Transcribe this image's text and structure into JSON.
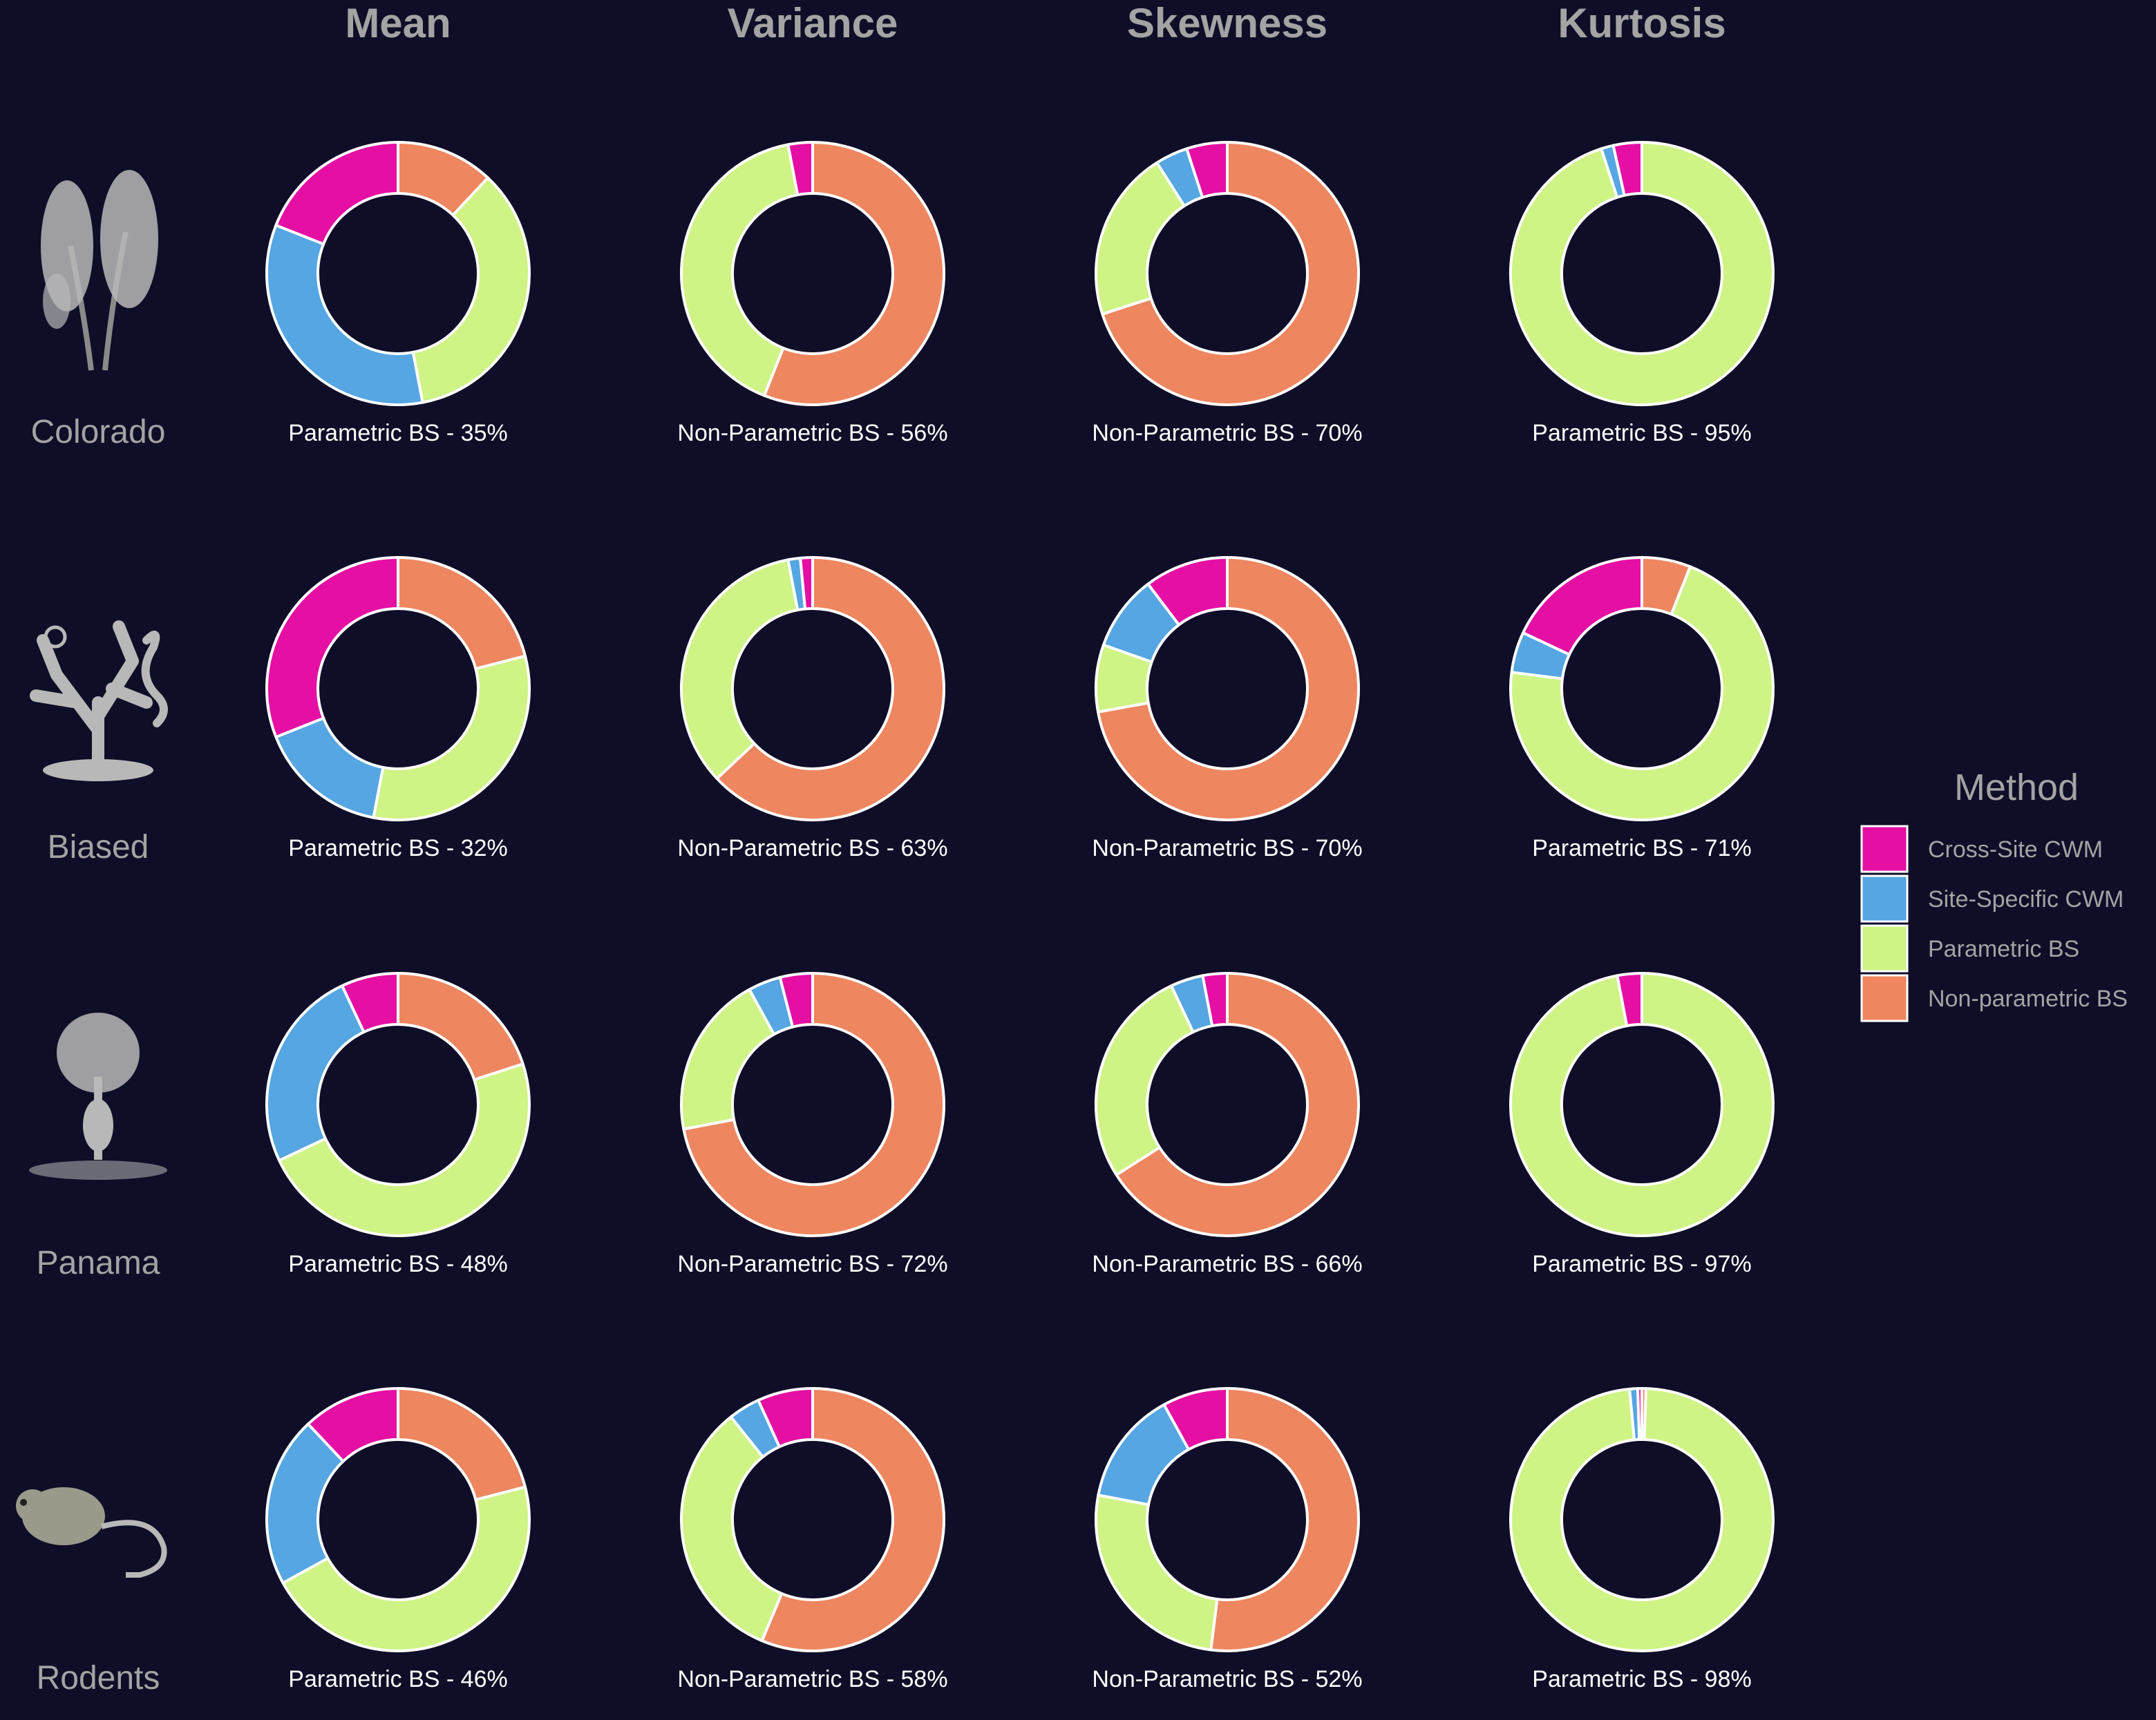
{
  "colors": {
    "background": "#0e0e28",
    "text": "#a3a3a3",
    "caption": "#ffffff",
    "slice_border": "#ffffff"
  },
  "chart_data": {
    "type": "pie",
    "variant": "donut-grid",
    "columns": [
      "Mean",
      "Variance",
      "Skewness",
      "Kurtosis"
    ],
    "rows": [
      "Colorado",
      "Biased",
      "Panama",
      "Rodents"
    ],
    "row_icons": [
      "plant-sprig-icon",
      "coral-seahorse-icon",
      "tree-icon",
      "rodent-icon"
    ],
    "legend": {
      "title": "Method",
      "position": "right",
      "entries": [
        {
          "label": "Cross-Site CWM",
          "color": "#e50fa3"
        },
        {
          "label": "Site-Specific CWM",
          "color": "#55a6e2"
        },
        {
          "label": "Parametric BS",
          "color": "#cff385"
        },
        {
          "label": "Non-parametric BS",
          "color": "#ee8660"
        }
      ]
    },
    "slice_order": [
      "Non-parametric BS",
      "Parametric BS",
      "Site-Specific CWM",
      "Cross-Site CWM"
    ],
    "panels": [
      {
        "row": "Colorado",
        "column": "Mean",
        "caption": "Parametric BS - 35%",
        "values": {
          "Non-parametric BS": 12,
          "Parametric BS": 35,
          "Site-Specific CWM": 34,
          "Cross-Site CWM": 19
        }
      },
      {
        "row": "Colorado",
        "column": "Variance",
        "caption": "Non-Parametric BS - 56%",
        "values": {
          "Non-parametric BS": 56,
          "Parametric BS": 41,
          "Site-Specific CWM": 0,
          "Cross-Site CWM": 3
        }
      },
      {
        "row": "Colorado",
        "column": "Skewness",
        "caption": "Non-Parametric BS - 70%",
        "values": {
          "Non-parametric BS": 70,
          "Parametric BS": 21,
          "Site-Specific CWM": 4,
          "Cross-Site CWM": 5
        }
      },
      {
        "row": "Colorado",
        "column": "Kurtosis",
        "caption": "Parametric BS - 95%",
        "values": {
          "Non-parametric BS": 0,
          "Parametric BS": 95,
          "Site-Specific CWM": 1.5,
          "Cross-Site CWM": 3.5
        }
      },
      {
        "row": "Biased",
        "column": "Mean",
        "caption": "Parametric BS - 32%",
        "values": {
          "Non-parametric BS": 21,
          "Parametric BS": 32,
          "Site-Specific CWM": 16,
          "Cross-Site CWM": 31
        }
      },
      {
        "row": "Biased",
        "column": "Variance",
        "caption": "Non-Parametric BS - 63%",
        "values": {
          "Non-parametric BS": 63,
          "Parametric BS": 34,
          "Site-Specific CWM": 1.5,
          "Cross-Site CWM": 1.5
        }
      },
      {
        "row": "Biased",
        "column": "Skewness",
        "caption": "Non-Parametric BS - 70%",
        "values": {
          "Non-parametric BS": 70,
          "Parametric BS": 8,
          "Site-Specific CWM": 9,
          "Cross-Site CWM": 10
        }
      },
      {
        "row": "Biased",
        "column": "Kurtosis",
        "caption": "Parametric BS - 71%",
        "values": {
          "Non-parametric BS": 6,
          "Parametric BS": 71,
          "Site-Specific CWM": 5,
          "Cross-Site CWM": 18
        }
      },
      {
        "row": "Panama",
        "column": "Mean",
        "caption": "Parametric BS - 48%",
        "values": {
          "Non-parametric BS": 20,
          "Parametric BS": 48,
          "Site-Specific CWM": 25,
          "Cross-Site CWM": 7
        }
      },
      {
        "row": "Panama",
        "column": "Variance",
        "caption": "Non-Parametric BS - 72%",
        "values": {
          "Non-parametric BS": 72,
          "Parametric BS": 20,
          "Site-Specific CWM": 4,
          "Cross-Site CWM": 4
        }
      },
      {
        "row": "Panama",
        "column": "Skewness",
        "caption": "Non-Parametric BS - 66%",
        "values": {
          "Non-parametric BS": 66,
          "Parametric BS": 27,
          "Site-Specific CWM": 4,
          "Cross-Site CWM": 3
        }
      },
      {
        "row": "Panama",
        "column": "Kurtosis",
        "caption": "Parametric BS - 97%",
        "values": {
          "Non-parametric BS": 0,
          "Parametric BS": 97,
          "Site-Specific CWM": 0,
          "Cross-Site CWM": 3
        }
      },
      {
        "row": "Rodents",
        "column": "Mean",
        "caption": "Parametric BS - 46%",
        "values": {
          "Non-parametric BS": 21,
          "Parametric BS": 46,
          "Site-Specific CWM": 21,
          "Cross-Site CWM": 12
        }
      },
      {
        "row": "Rodents",
        "column": "Variance",
        "caption": "Non-Parametric BS - 58%",
        "values": {
          "Non-parametric BS": 58,
          "Parametric BS": 34,
          "Site-Specific CWM": 4,
          "Cross-Site CWM": 7
        }
      },
      {
        "row": "Rodents",
        "column": "Skewness",
        "caption": "Non-Parametric BS - 52%",
        "values": {
          "Non-parametric BS": 52,
          "Parametric BS": 26,
          "Site-Specific CWM": 14,
          "Cross-Site CWM": 8
        }
      },
      {
        "row": "Rodents",
        "column": "Kurtosis",
        "caption": "Parametric BS - 98%",
        "values": {
          "Non-parametric BS": 0.5,
          "Parametric BS": 98,
          "Site-Specific CWM": 1,
          "Cross-Site CWM": 0.5
        }
      }
    ]
  }
}
